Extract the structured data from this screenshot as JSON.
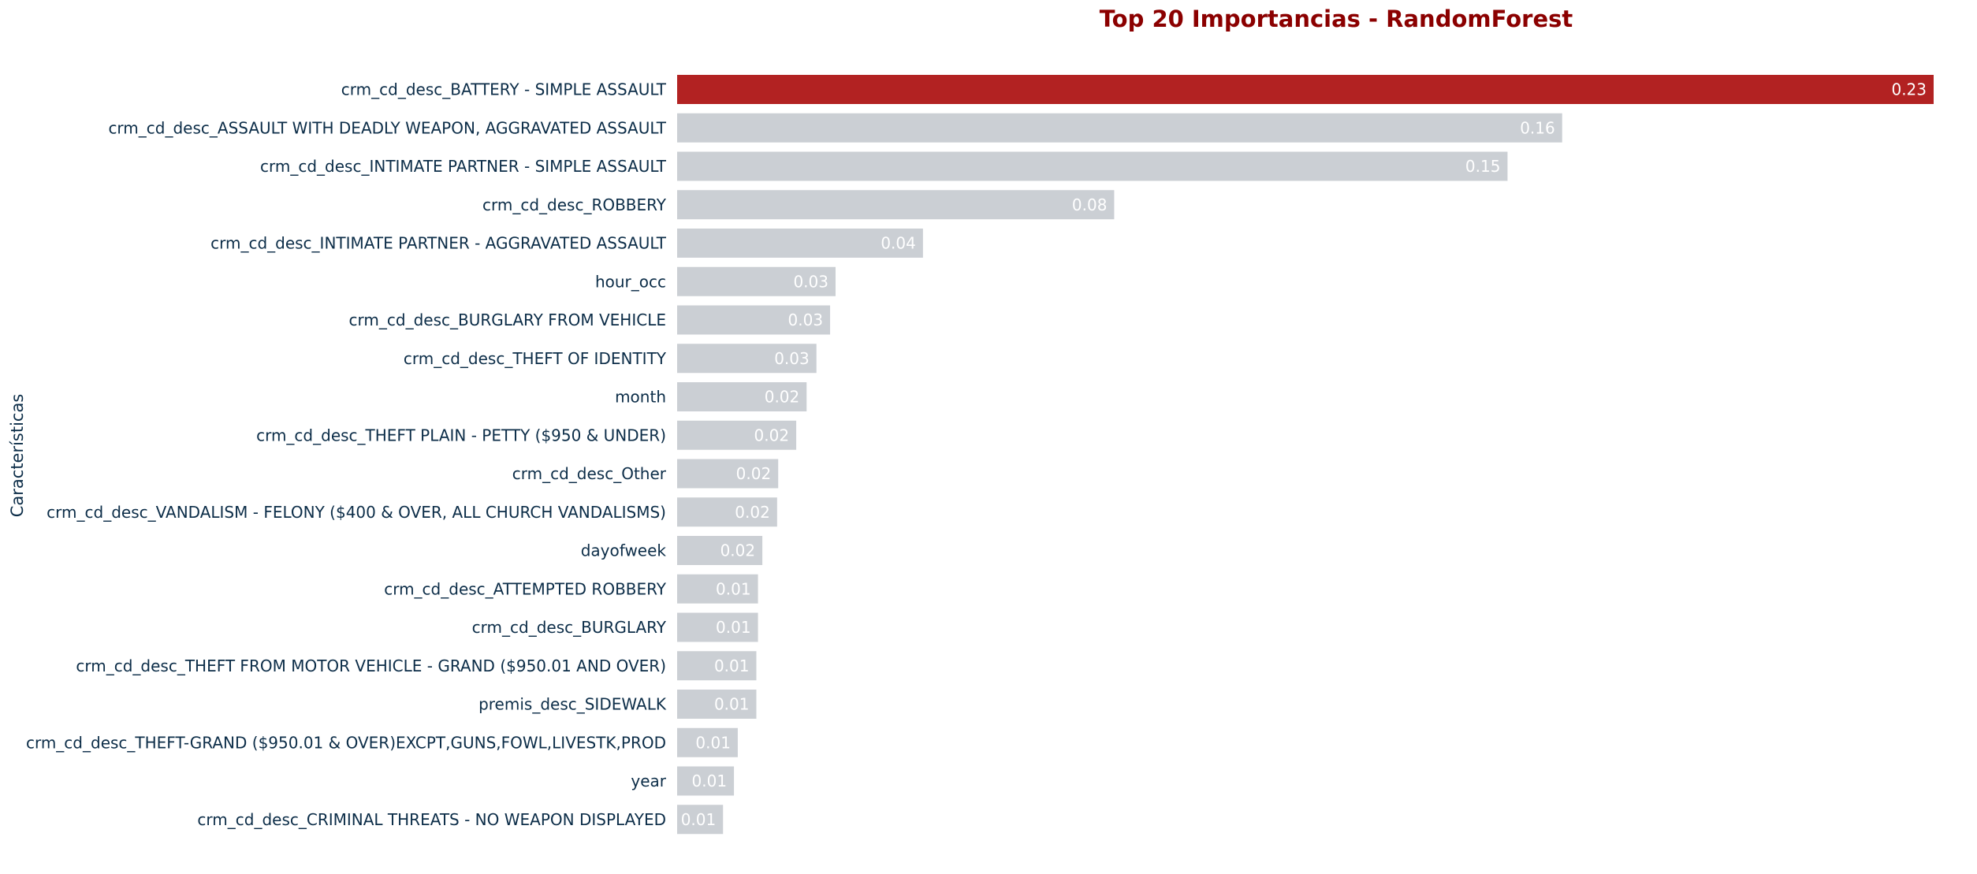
{
  "chart_data": {
    "type": "bar",
    "orientation": "horizontal",
    "title": "Top 20 Importancias - RandomForest",
    "xlabel": "",
    "ylabel": "Características",
    "xlim": [
      0,
      0.23
    ],
    "grid": false,
    "legend": "none",
    "categories": [
      "crm_cd_desc_BATTERY - SIMPLE ASSAULT",
      "crm_cd_desc_ASSAULT WITH DEADLY WEAPON, AGGRAVATED ASSAULT",
      "crm_cd_desc_INTIMATE PARTNER - SIMPLE ASSAULT",
      "crm_cd_desc_ROBBERY",
      "crm_cd_desc_INTIMATE PARTNER - AGGRAVATED ASSAULT",
      "hour_occ",
      "crm_cd_desc_BURGLARY FROM VEHICLE",
      "crm_cd_desc_THEFT OF IDENTITY",
      "month",
      "crm_cd_desc_THEFT PLAIN - PETTY ($950 & UNDER)",
      "crm_cd_desc_Other",
      "crm_cd_desc_VANDALISM - FELONY ($400 & OVER, ALL CHURCH VANDALISMS)",
      "dayofweek",
      "crm_cd_desc_ATTEMPTED ROBBERY",
      "crm_cd_desc_BURGLARY",
      "crm_cd_desc_THEFT FROM MOTOR VEHICLE - GRAND ($950.01 AND OVER)",
      "premis_desc_SIDEWALK",
      "crm_cd_desc_THEFT-GRAND ($950.01 & OVER)EXCPT,GUNS,FOWL,LIVESTK,PROD",
      "year",
      "crm_cd_desc_CRIMINAL THREATS - NO WEAPON DISPLAYED"
    ],
    "values": [
      0.23,
      0.162,
      0.152,
      0.08,
      0.045,
      0.029,
      0.028,
      0.0255,
      0.0237,
      0.0218,
      0.0185,
      0.0183,
      0.0156,
      0.0148,
      0.0148,
      0.0145,
      0.0145,
      0.0111,
      0.0104,
      0.0084
    ],
    "value_labels": [
      "0.23",
      "0.16",
      "0.15",
      "0.08",
      "0.04",
      "0.03",
      "0.03",
      "0.03",
      "0.02",
      "0.02",
      "0.02",
      "0.02",
      "0.02",
      "0.01",
      "0.01",
      "0.01",
      "0.01",
      "0.01",
      "0.01",
      "0.01"
    ],
    "highlight_index": 0,
    "colors": {
      "highlight": "#b22222",
      "bar": "#cbcfd4",
      "title": "#8b0000",
      "label": "#0c2d48",
      "value_label": "#ffffff"
    }
  }
}
